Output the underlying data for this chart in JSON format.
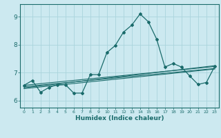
{
  "title": "",
  "xlabel": "Humidex (Indice chaleur)",
  "ylabel": "",
  "bg_color": "#cce9f0",
  "grid_color": "#aad4dc",
  "line_color": "#1a6b6b",
  "spine_color": "#1a6b6b",
  "xlim": [
    -0.5,
    23.5
  ],
  "ylim": [
    5.75,
    9.45
  ],
  "yticks": [
    6,
    7,
    8,
    9
  ],
  "xticks": [
    0,
    1,
    2,
    3,
    4,
    5,
    6,
    7,
    8,
    9,
    10,
    11,
    12,
    13,
    14,
    15,
    16,
    17,
    18,
    19,
    20,
    21,
    22,
    23
  ],
  "main_x": [
    0,
    1,
    2,
    3,
    4,
    5,
    6,
    7,
    8,
    9,
    10,
    11,
    12,
    13,
    14,
    15,
    16,
    17,
    18,
    19,
    20,
    21,
    22,
    23
  ],
  "main_y": [
    6.55,
    6.72,
    6.3,
    6.47,
    6.57,
    6.57,
    6.27,
    6.27,
    6.93,
    6.93,
    7.72,
    7.97,
    8.45,
    8.7,
    9.1,
    8.82,
    8.2,
    7.2,
    7.33,
    7.2,
    6.88,
    6.58,
    6.65,
    7.22
  ],
  "line1_x": [
    0,
    23
  ],
  "line1_y": [
    6.55,
    7.22
  ],
  "line2_x": [
    0,
    23
  ],
  "line2_y": [
    6.5,
    7.15
  ],
  "line3_x": [
    0,
    23
  ],
  "line3_y": [
    6.46,
    7.25
  ],
  "line4_x": [
    0,
    23
  ],
  "line4_y": [
    6.43,
    7.13
  ]
}
